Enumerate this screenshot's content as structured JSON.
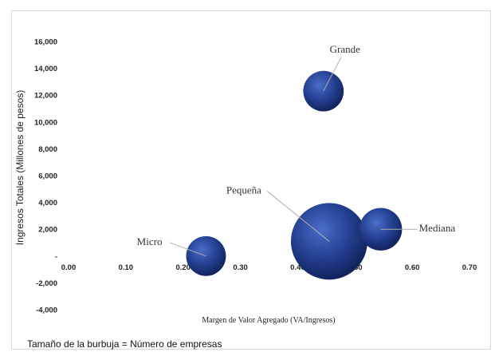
{
  "chart_data": {
    "type": "bubble",
    "title": "",
    "xlabel": "Margen de Valor Agregado (VA/Ingresos)",
    "ylabel": "Ingresos Totales (Millones de pesos)",
    "xlim": [
      0,
      0.7
    ],
    "ylim": [
      -4000,
      16000
    ],
    "x_ticks": [
      "0.00",
      "0.10",
      "0.20",
      "0.30",
      "0.40",
      "0.50",
      "0.60",
      "0.70"
    ],
    "y_ticks": [
      "-4,000",
      "-2,000",
      "-",
      "2,000",
      "4,000",
      "6,000",
      "8,000",
      "10,000",
      "12,000",
      "14,000",
      "16,000"
    ],
    "grid": false,
    "bubble_color": "#233f8f",
    "size_note": "Tamaño de la burbuja = Número de empresas",
    "points": [
      {
        "label": "Micro",
        "x": 0.24,
        "y": 0,
        "size": 0.27
      },
      {
        "label": "Pequeña",
        "x": 0.455,
        "y": 1100,
        "size": 1.0
      },
      {
        "label": "Mediana",
        "x": 0.545,
        "y": 2000,
        "size": 0.31
      },
      {
        "label": "Grande",
        "x": 0.445,
        "y": 12300,
        "size": 0.28
      }
    ]
  }
}
